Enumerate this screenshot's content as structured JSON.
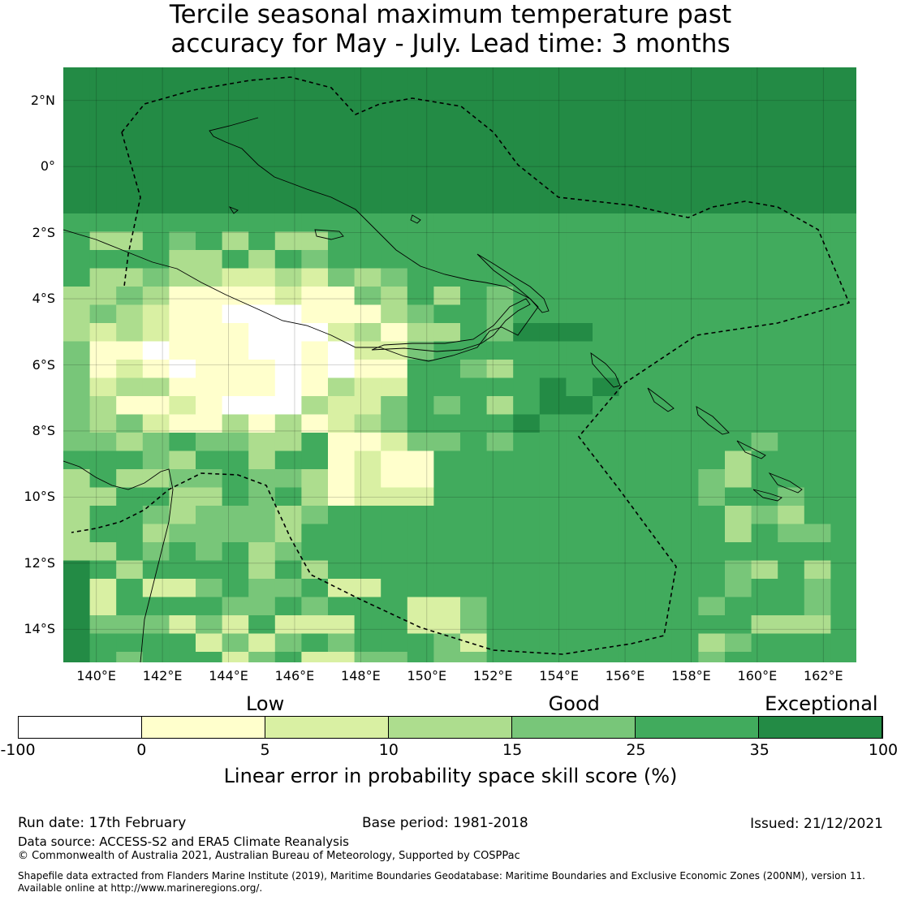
{
  "title_line1": "Tercile seasonal maximum temperature past",
  "title_line2": "accuracy for May - July. Lead time: 3 months",
  "map": {
    "extent": {
      "lon": [
        139,
        163
      ],
      "lat": [
        -15,
        3
      ]
    },
    "lat_ticks": [
      {
        "value": 2,
        "label": "2°N"
      },
      {
        "value": 0,
        "label": "0°"
      },
      {
        "value": -2,
        "label": "2°S"
      },
      {
        "value": -4,
        "label": "4°S"
      },
      {
        "value": -6,
        "label": "6°S"
      },
      {
        "value": -8,
        "label": "8°S"
      },
      {
        "value": -10,
        "label": "10°S"
      },
      {
        "value": -12,
        "label": "12°S"
      },
      {
        "value": -14,
        "label": "14°S"
      }
    ],
    "lon_ticks": [
      {
        "value": 140,
        "label": "140°E"
      },
      {
        "value": 142,
        "label": "142°E"
      },
      {
        "value": 144,
        "label": "144°E"
      },
      {
        "value": 146,
        "label": "146°E"
      },
      {
        "value": 148,
        "label": "148°E"
      },
      {
        "value": 150,
        "label": "150°E"
      },
      {
        "value": 152,
        "label": "152°E"
      },
      {
        "value": 154,
        "label": "154°E"
      },
      {
        "value": 156,
        "label": "156°E"
      },
      {
        "value": 158,
        "label": "158°E"
      },
      {
        "value": 160,
        "label": "160°E"
      },
      {
        "value": 162,
        "label": "162°E"
      }
    ]
  },
  "legend": {
    "categories": [
      {
        "label": "Low",
        "at": 0
      },
      {
        "label": "Good",
        "at": 10
      },
      {
        "label": "Exceptional",
        "at": 35
      }
    ],
    "bins": [
      {
        "from": -100,
        "to": 0,
        "color": "#ffffff"
      },
      {
        "from": 0,
        "to": 5,
        "color": "#ffffcc"
      },
      {
        "from": 5,
        "to": 10,
        "color": "#d9f0a3"
      },
      {
        "from": 10,
        "to": 15,
        "color": "#addd8e"
      },
      {
        "from": 15,
        "to": 25,
        "color": "#78c679"
      },
      {
        "from": 25,
        "to": 35,
        "color": "#41ab5d"
      },
      {
        "from": 35,
        "to": 100,
        "color": "#238b45"
      }
    ],
    "ticks": [
      "-100",
      "0",
      "5",
      "10",
      "15",
      "25",
      "35",
      "100"
    ],
    "title": "Linear error in probability space skill score (%)"
  },
  "footer": {
    "run_date": "Run date: 17th February",
    "base_period": "Base period: 1981-2018",
    "issued": "Issued: 21/12/2021",
    "data_source": "Data source: ACCESS-S2 and ERA5 Climate Reanalysis",
    "copyright": "© Commonwealth of Australia 2021, Australian Bureau of Meteorology, Supported by COSPPac",
    "shapefile_line1": "Shapefile data extracted from Flanders Marine Institute (2019), Maritime Boundaries Geodatabase: Maritime Boundaries and Exclusive Economic Zones (200NM), version 11.",
    "shapefile_line2": "Available online at http://www.marineregions.org/."
  }
}
